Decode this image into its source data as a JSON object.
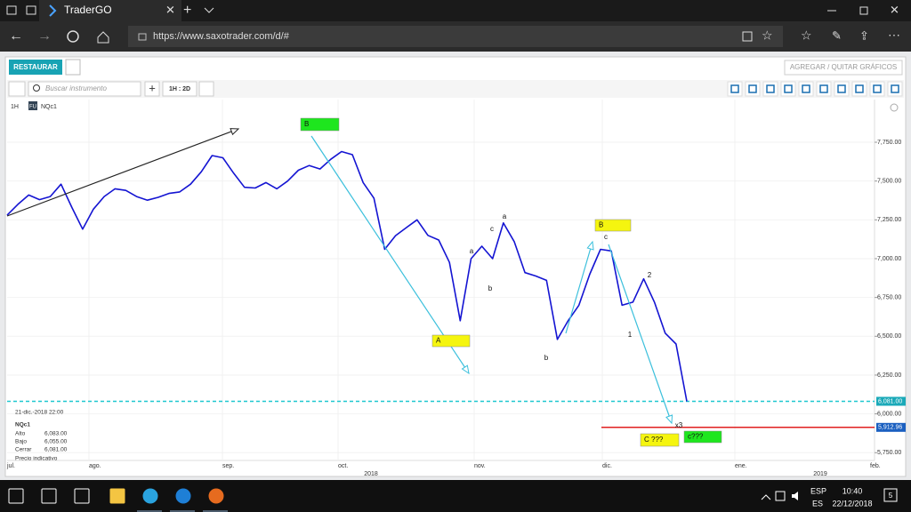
{
  "browser": {
    "tab_title": "TraderGO",
    "url": "https://www.saxotrader.com/d/#"
  },
  "app": {
    "restore_button": "RESTAURAR",
    "add_remove_charts": "AGREGAR / QUITAR GRÁFICOS",
    "search_placeholder": "Buscar instrumento",
    "interval_button": "1H : 2D"
  },
  "chart_header": {
    "interval": "1H",
    "badge": "FU",
    "symbol": "NQc1"
  },
  "chart_data": {
    "type": "line",
    "series": [
      {
        "name": "NQc1",
        "color": "#1414d2",
        "values": [
          7280,
          7350,
          7410,
          7380,
          7400,
          7480,
          7330,
          7190,
          7319,
          7400,
          7450,
          7440,
          7400,
          7377,
          7395,
          7420,
          7430,
          7480,
          7560,
          7664,
          7650,
          7550,
          7460,
          7455,
          7490,
          7450,
          7500,
          7570,
          7600,
          7578,
          7640,
          7690,
          7670,
          7490,
          7390,
          7060,
          7148,
          7200,
          7250,
          7150,
          7120,
          6976,
          6600,
          7000,
          7080,
          7000,
          7230,
          7110,
          6910,
          6888,
          6860,
          6480,
          6600,
          6700,
          6900,
          7060,
          7050,
          6700,
          6720,
          6870,
          6720,
          6520,
          6450,
          6081
        ]
      }
    ],
    "ylim": [
      5700,
      8025
    ],
    "yticks": [
      {
        "value": 5750,
        "label": "5,750.00"
      },
      {
        "value": 6000,
        "label": "6,000.00"
      },
      {
        "value": 6250,
        "label": "6,250.00"
      },
      {
        "value": 6500,
        "label": "6,500.00"
      },
      {
        "value": 6750,
        "label": "6,750.00"
      },
      {
        "value": 7000,
        "label": "7,000.00"
      },
      {
        "value": 7250,
        "label": "7,250.00"
      },
      {
        "value": 7500,
        "label": "7,500.00"
      },
      {
        "value": 7750,
        "label": "7,750.00"
      }
    ],
    "grid": true,
    "months": [
      "jul.",
      "ago.",
      "sep.",
      "oct.",
      "nov.",
      "dic.",
      "ene.",
      "feb."
    ],
    "years": [
      "2018",
      "2019"
    ],
    "hlines": [
      {
        "value": 6081,
        "label": "6,081.00",
        "color": "#1ec8d0"
      },
      {
        "value": 5912.96,
        "label": "5,912.96",
        "color": "#e02020"
      }
    ],
    "annotations": [
      {
        "text": "B",
        "style": "green"
      },
      {
        "text": "A",
        "style": "yellow"
      },
      {
        "text": "B",
        "style": "yellow"
      },
      {
        "text": "C ???",
        "style": "yellow"
      },
      {
        "text": "c???",
        "style": "green"
      },
      {
        "text": "a",
        "style": "plain"
      },
      {
        "text": "c",
        "style": "plain"
      },
      {
        "text": "a",
        "style": "plain"
      },
      {
        "text": "b",
        "style": "plain"
      },
      {
        "text": "b",
        "style": "plain"
      },
      {
        "text": "c",
        "style": "plain"
      },
      {
        "text": "2",
        "style": "plain"
      },
      {
        "text": "1",
        "style": "plain"
      },
      {
        "text": "x3",
        "style": "plain"
      }
    ]
  },
  "info_box": {
    "timestamp": "21-dic.-2018 22:00",
    "symbol": "NQc1",
    "rows": [
      [
        "Alto",
        "6,083.00"
      ],
      [
        "Bajo",
        "6,055.00"
      ],
      [
        "Cerrar",
        "6,081.00"
      ]
    ],
    "note": "Precio indicativo"
  },
  "taskbar": {
    "language": "ESP",
    "layout": "ES",
    "time": "10:40",
    "date": "22/12/2018",
    "notifications": "5"
  }
}
